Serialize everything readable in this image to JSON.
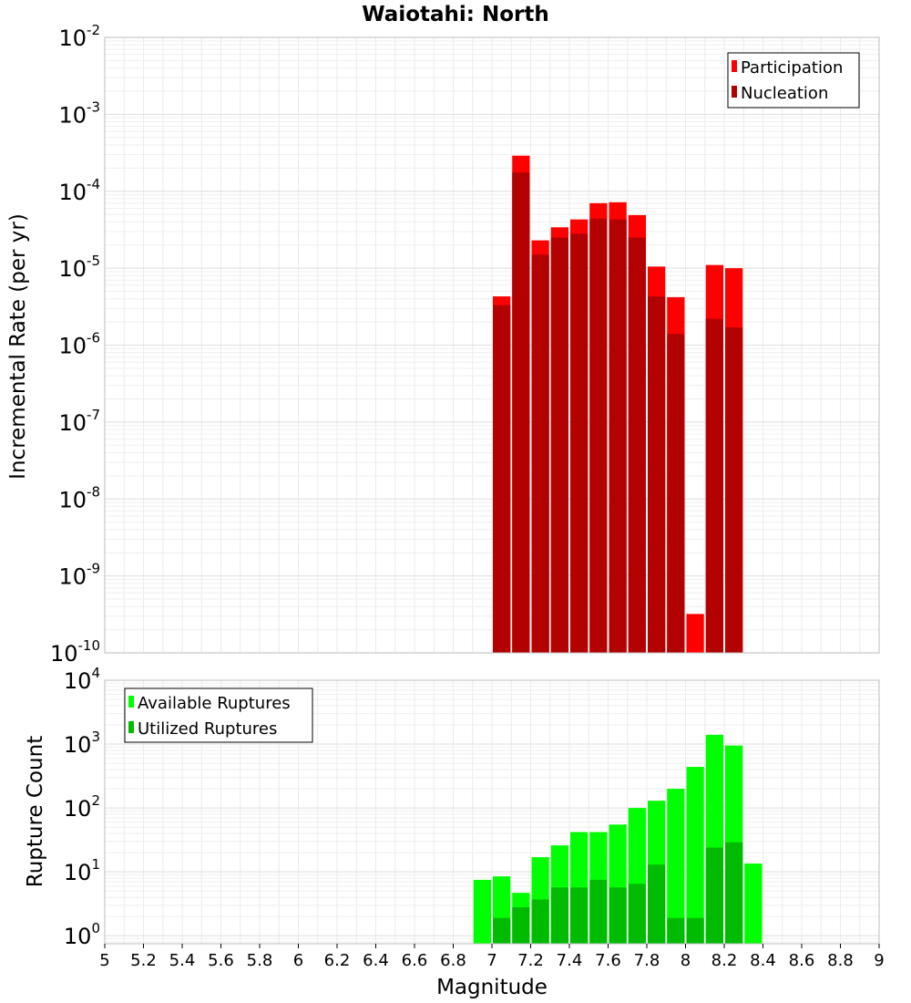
{
  "chart_data": [
    {
      "type": "bar",
      "title": "Waiotahi: North",
      "xlabel": "",
      "ylabel": "Incremental Rate (per yr)",
      "yscale": "log",
      "xlim": [
        5,
        9
      ],
      "ylim": [
        1e-10,
        0.01
      ],
      "grid": true,
      "legend_position": "top-right",
      "series": [
        {
          "name": "Participation",
          "color": "#ff0000",
          "x": [
            7.05,
            7.15,
            7.25,
            7.35,
            7.45,
            7.55,
            7.65,
            7.75,
            7.85,
            7.95,
            8.05,
            8.15,
            8.25
          ],
          "values": [
            4.3e-06,
            0.00029,
            2.3e-05,
            3.4e-05,
            4.3e-05,
            7e-05,
            7.2e-05,
            4.9e-05,
            1.05e-05,
            4.2e-06,
            3.2e-10,
            1.1e-05,
            1e-05
          ]
        },
        {
          "name": "Nucleation",
          "color": "#b30000",
          "x": [
            7.05,
            7.15,
            7.25,
            7.35,
            7.45,
            7.55,
            7.65,
            7.75,
            7.85,
            7.95,
            8.15,
            8.25
          ],
          "values": [
            3.3e-06,
            0.000175,
            1.5e-05,
            2.5e-05,
            2.8e-05,
            4.4e-05,
            4.3e-05,
            2.5e-05,
            4.3e-06,
            1.4e-06,
            2.2e-06,
            1.7e-06
          ]
        }
      ]
    },
    {
      "type": "bar",
      "title": "",
      "xlabel": "Magnitude",
      "ylabel": "Rupture Count",
      "yscale": "log",
      "xlim": [
        5,
        9
      ],
      "ylim": [
        0.75,
        10000
      ],
      "grid": true,
      "legend_position": "top-left",
      "xticks": [
        "5",
        "5.2",
        "5.4",
        "5.6",
        "5.8",
        "6",
        "6.2",
        "6.4",
        "6.6",
        "6.8",
        "7",
        "7.2",
        "7.4",
        "7.6",
        "7.8",
        "8",
        "8.2",
        "8.4",
        "8.6",
        "8.8",
        "9"
      ],
      "series": [
        {
          "name": "Available Ruptures",
          "color": "#00ff00",
          "x": [
            6.95,
            7.05,
            7.15,
            7.25,
            7.35,
            7.45,
            7.55,
            7.65,
            7.75,
            7.85,
            7.95,
            8.05,
            8.15,
            8.25,
            8.35
          ],
          "values": [
            7.5,
            8.5,
            4.7,
            17,
            26,
            42,
            42,
            55,
            100,
            130,
            200,
            440,
            1400,
            950,
            13.5
          ]
        },
        {
          "name": "Utilized Ruptures",
          "color": "#00bb00",
          "x": [
            7.05,
            7.15,
            7.25,
            7.35,
            7.45,
            7.55,
            7.65,
            7.75,
            7.85,
            7.95,
            8.05,
            8.15,
            8.25
          ],
          "values": [
            1.9,
            2.8,
            3.7,
            5.7,
            5.7,
            7.5,
            5.7,
            6.5,
            13,
            1.9,
            1.9,
            24,
            29
          ]
        }
      ]
    }
  ]
}
